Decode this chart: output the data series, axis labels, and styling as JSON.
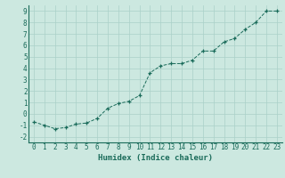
{
  "x": [
    0,
    1,
    2,
    3,
    4,
    5,
    6,
    7,
    8,
    9,
    10,
    11,
    12,
    13,
    14,
    15,
    16,
    17,
    18,
    19,
    20,
    21,
    22,
    23
  ],
  "y": [
    -0.7,
    -1.0,
    -1.3,
    -1.2,
    -0.9,
    -0.8,
    -0.4,
    0.5,
    0.9,
    1.1,
    1.6,
    3.6,
    4.2,
    4.4,
    4.4,
    4.7,
    5.5,
    5.5,
    6.3,
    6.6,
    7.4,
    8.0,
    9.0,
    9.0
  ],
  "xlim": [
    -0.5,
    23.5
  ],
  "ylim": [
    -2.5,
    9.5
  ],
  "yticks": [
    -2,
    -1,
    0,
    1,
    2,
    3,
    4,
    5,
    6,
    7,
    8,
    9
  ],
  "xticks": [
    0,
    1,
    2,
    3,
    4,
    5,
    6,
    7,
    8,
    9,
    10,
    11,
    12,
    13,
    14,
    15,
    16,
    17,
    18,
    19,
    20,
    21,
    22,
    23
  ],
  "xlabel": "Humidex (Indice chaleur)",
  "line_color": "#1a6b5a",
  "marker_color": "#1a6b5a",
  "bg_color": "#cce8e0",
  "grid_color": "#aad0c8",
  "axis_color": "#1a6b5a",
  "tick_color": "#1a6b5a",
  "label_color": "#1a6b5a",
  "xlabel_fontsize": 6.5,
  "tick_fontsize": 5.5
}
